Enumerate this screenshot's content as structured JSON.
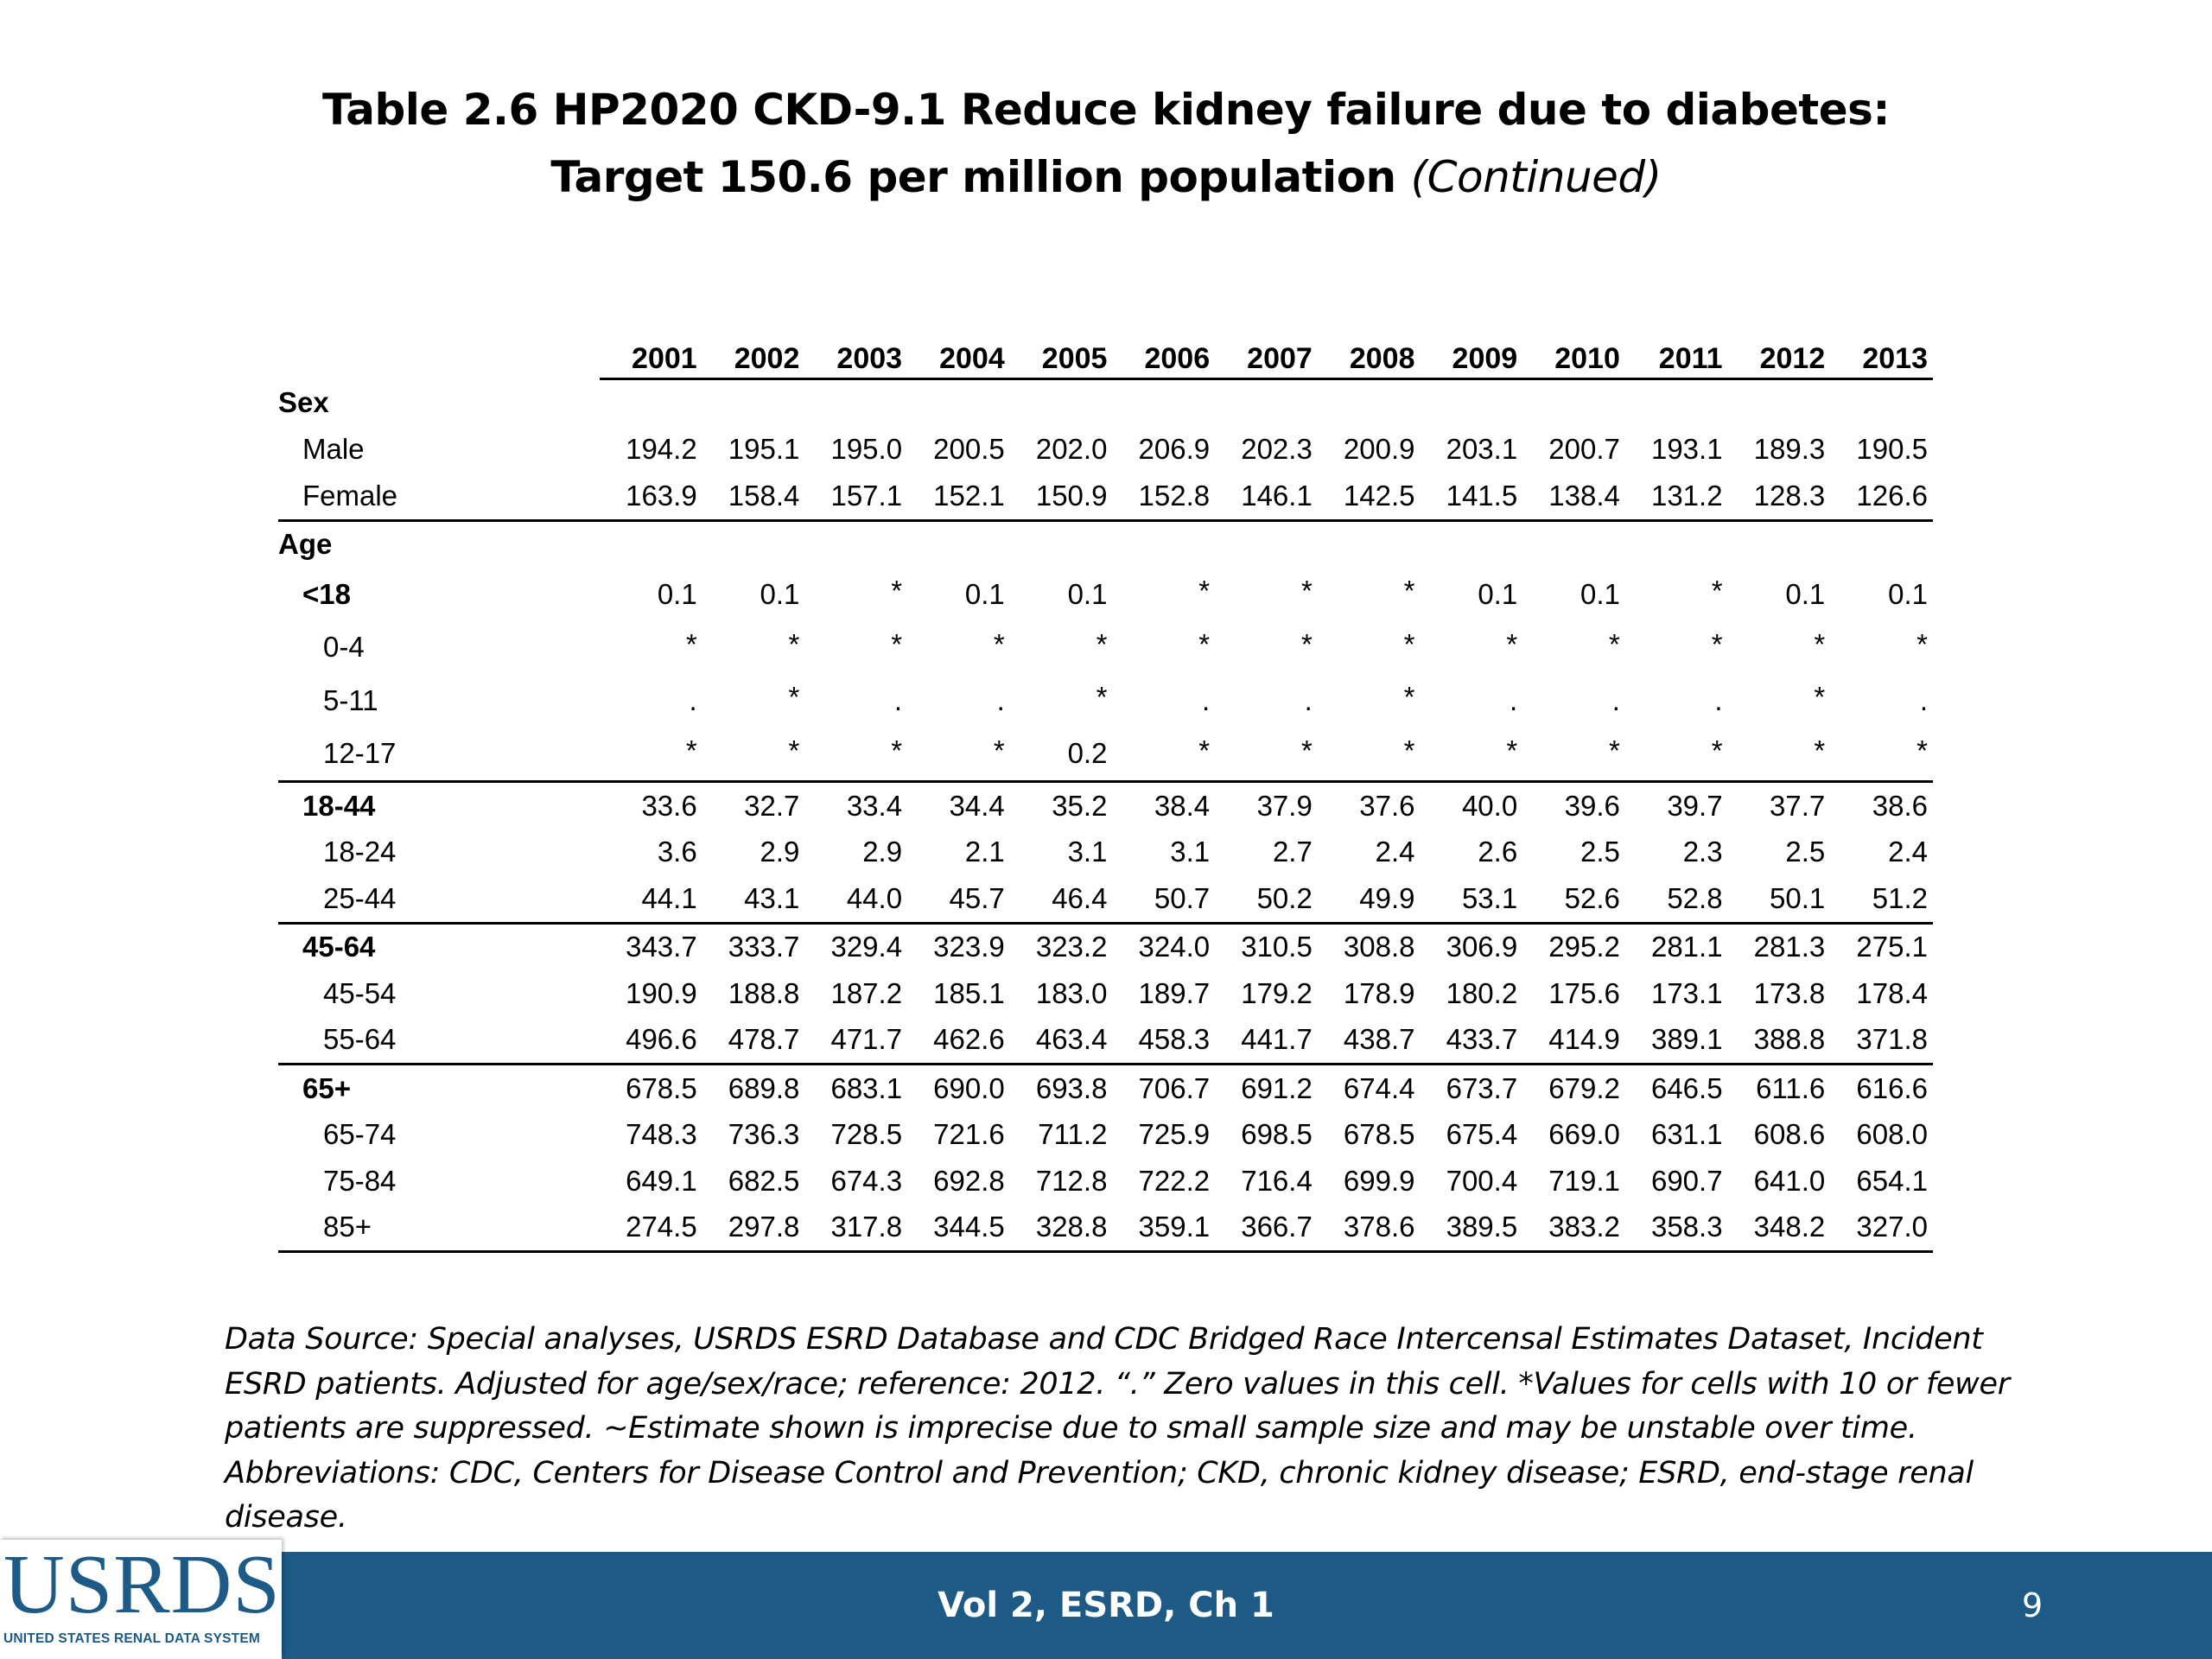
{
  "title": {
    "line1": "Table 2.6  HP2020 CKD-9.1 Reduce kidney failure due to diabetes:",
    "line2_main": "Target 150.6 per million population ",
    "line2_cont": "(Continued)"
  },
  "table": {
    "years": [
      "2001",
      "2002",
      "2003",
      "2004",
      "2005",
      "2006",
      "2007",
      "2008",
      "2009",
      "2010",
      "2011",
      "2012",
      "2013"
    ],
    "rows": [
      {
        "label": "Sex",
        "values": []
      },
      {
        "label": "Male",
        "values": [
          "194.2",
          "195.1",
          "195.0",
          "200.5",
          "202.0",
          "206.9",
          "202.3",
          "200.9",
          "203.1",
          "200.7",
          "193.1",
          "189.3",
          "190.5"
        ]
      },
      {
        "label": "Female",
        "values": [
          "163.9",
          "158.4",
          "157.1",
          "152.1",
          "150.9",
          "152.8",
          "146.1",
          "142.5",
          "141.5",
          "138.4",
          "131.2",
          "128.3",
          "126.6"
        ]
      },
      {
        "label": "Age",
        "values": []
      },
      {
        "label": "<18",
        "values": [
          "0.1",
          "0.1",
          "*",
          "0.1",
          "0.1",
          "*",
          "*",
          "*",
          "0.1",
          "0.1",
          "*",
          "0.1",
          "0.1"
        ]
      },
      {
        "label": "0-4",
        "values": [
          "*",
          "*",
          "*",
          "*",
          "*",
          "*",
          "*",
          "*",
          "*",
          "*",
          "*",
          "*",
          "*"
        ]
      },
      {
        "label": "5-11",
        "values": [
          ".",
          "*",
          ".",
          ".",
          "*",
          ".",
          ".",
          "*",
          ".",
          ".",
          ".",
          "*",
          "."
        ]
      },
      {
        "label": "12-17",
        "values": [
          "*",
          "*",
          "*",
          "*",
          "0.2",
          "*",
          "*",
          "*",
          "*",
          "*",
          "*",
          "*",
          "*"
        ]
      },
      {
        "label": "18-44",
        "values": [
          "33.6",
          "32.7",
          "33.4",
          "34.4",
          "35.2",
          "38.4",
          "37.9",
          "37.6",
          "40.0",
          "39.6",
          "39.7",
          "37.7",
          "38.6"
        ]
      },
      {
        "label": "18-24",
        "values": [
          "3.6",
          "2.9",
          "2.9",
          "2.1",
          "3.1",
          "3.1",
          "2.7",
          "2.4",
          "2.6",
          "2.5",
          "2.3",
          "2.5",
          "2.4"
        ]
      },
      {
        "label": "25-44",
        "values": [
          "44.1",
          "43.1",
          "44.0",
          "45.7",
          "46.4",
          "50.7",
          "50.2",
          "49.9",
          "53.1",
          "52.6",
          "52.8",
          "50.1",
          "51.2"
        ]
      },
      {
        "label": "45-64",
        "values": [
          "343.7",
          "333.7",
          "329.4",
          "323.9",
          "323.2",
          "324.0",
          "310.5",
          "308.8",
          "306.9",
          "295.2",
          "281.1",
          "281.3",
          "275.1"
        ]
      },
      {
        "label": "45-54",
        "values": [
          "190.9",
          "188.8",
          "187.2",
          "185.1",
          "183.0",
          "189.7",
          "179.2",
          "178.9",
          "180.2",
          "175.6",
          "173.1",
          "173.8",
          "178.4"
        ]
      },
      {
        "label": "55-64",
        "values": [
          "496.6",
          "478.7",
          "471.7",
          "462.6",
          "463.4",
          "458.3",
          "441.7",
          "438.7",
          "433.7",
          "414.9",
          "389.1",
          "388.8",
          "371.8"
        ]
      },
      {
        "label": "65+",
        "values": [
          "678.5",
          "689.8",
          "683.1",
          "690.0",
          "693.8",
          "706.7",
          "691.2",
          "674.4",
          "673.7",
          "679.2",
          "646.5",
          "611.6",
          "616.6"
        ]
      },
      {
        "label": "65-74",
        "values": [
          "748.3",
          "736.3",
          "728.5",
          "721.6",
          "711.2",
          "725.9",
          "698.5",
          "678.5",
          "675.4",
          "669.0",
          "631.1",
          "608.6",
          "608.0"
        ]
      },
      {
        "label": "75-84",
        "values": [
          "649.1",
          "682.5",
          "674.3",
          "692.8",
          "712.8",
          "722.2",
          "716.4",
          "699.9",
          "700.4",
          "719.1",
          "690.7",
          "641.0",
          "654.1"
        ]
      },
      {
        "label": "85+",
        "values": [
          "274.5",
          "297.8",
          "317.8",
          "344.5",
          "328.8",
          "359.1",
          "366.7",
          "378.6",
          "389.5",
          "383.2",
          "358.3",
          "348.2",
          "327.0"
        ]
      }
    ]
  },
  "footnote": "Data Source: Special analyses, USRDS ESRD Database and CDC Bridged Race Intercensal Estimates Dataset, Incident ESRD patients. Adjusted for age/sex/race; reference: 2012. “.” Zero values in this cell. *Values for cells with 10 or fewer patients are suppressed.  ~Estimate shown is imprecise due to small sample size and may be unstable over time.  Abbreviations: CDC, Centers for Disease Control and Prevention; CKD, chronic kidney disease; ESRD, end-stage renal disease.",
  "footer": {
    "logo_text": "USRDS",
    "logo_subtext": "UNITED STATES RENAL DATA SYSTEM",
    "center_text": "Vol 2, ESRD, Ch 1",
    "page_number": "9",
    "bar_color": "#1d5a86"
  }
}
